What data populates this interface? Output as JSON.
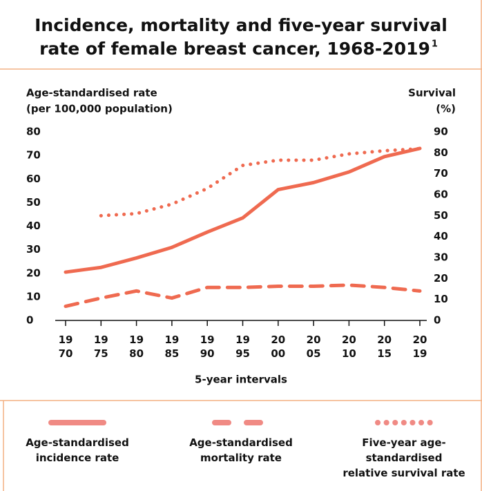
{
  "chart_data": {
    "type": "line",
    "title": [
      "Incidence, mortality and five-year survival",
      "rate of female breast cancer, 1968-2019"
    ],
    "title_note": "1",
    "y_label": [
      "Age-standardised rate",
      "(per 100,000 population)"
    ],
    "y2_label": [
      "Survival",
      "(%)"
    ],
    "x_label": "5-year intervals",
    "categories": [
      "1970",
      "1975",
      "1980",
      "1985",
      "1990",
      "1995",
      "2000",
      "2005",
      "2010",
      "2015",
      "2019"
    ],
    "series": [
      {
        "name": "Age-standardised incidence rate",
        "color": "#ef6a50",
        "style": "solid",
        "values": [
          20.5,
          22.5,
          26.5,
          31,
          37.5,
          43.5,
          55.5,
          58.5,
          63,
          69.5,
          73
        ]
      },
      {
        "name": "Age-standardised mortality rate",
        "color": "#ef6a50",
        "style": "dashed",
        "values": [
          6,
          9.5,
          12.5,
          9.5,
          14,
          14,
          14.5,
          14.5,
          15,
          14,
          12.5
        ]
      },
      {
        "name": "Five-year age-standardised relative survival rate",
        "color": "#ef6a50",
        "style": "dotted",
        "axis": "y2",
        "values": [
          null,
          50,
          51,
          55.5,
          63,
          74,
          76.5,
          76.5,
          79.5,
          81,
          82
        ]
      }
    ],
    "ylim": [
      0,
      80
    ],
    "yticks": [
      0,
      10,
      20,
      30,
      40,
      50,
      60,
      70,
      80
    ],
    "y2lim": [
      0,
      90
    ],
    "y2ticks": [
      0,
      10,
      20,
      30,
      40,
      50,
      60,
      70,
      80,
      90
    ],
    "legend_color": "#f08a84"
  }
}
